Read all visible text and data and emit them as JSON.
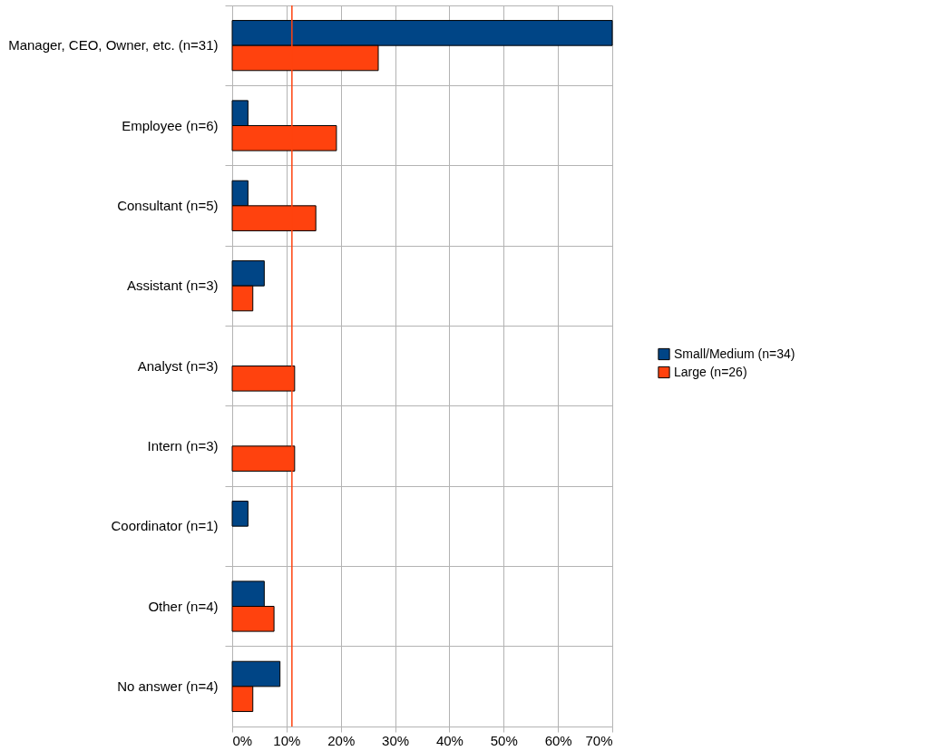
{
  "chart_data": {
    "type": "bar",
    "orientation": "horizontal",
    "categories": [
      "Manager, CEO, Owner, etc. (n=31)",
      "Employee (n=6)",
      "Consultant (n=5)",
      "Assistant (n=3)",
      "Analyst (n=3)",
      "Intern (n=3)",
      "Coordinator (n=1)",
      "Other (n=4)",
      "No answer (n=4)"
    ],
    "series": [
      {
        "name": "Small/Medium (n=34)",
        "color": "#004586",
        "values": [
          70,
          2.9,
          2.9,
          5.9,
          0,
          0,
          2.9,
          5.9,
          8.8
        ]
      },
      {
        "name": "Large (n=26)",
        "color": "#ff420e",
        "values": [
          26.9,
          19.2,
          15.4,
          3.8,
          11.5,
          11.5,
          0,
          7.7,
          3.8
        ]
      }
    ],
    "xlim": [
      0,
      70
    ],
    "xticks": [
      {
        "value": 0,
        "label": "0%"
      },
      {
        "value": 10,
        "label": "10%"
      },
      {
        "value": 20,
        "label": "20%"
      },
      {
        "value": 30,
        "label": "30%"
      },
      {
        "value": 40,
        "label": "40%"
      },
      {
        "value": 50,
        "label": "50%"
      },
      {
        "value": 60,
        "label": "60%"
      },
      {
        "value": 70,
        "label": "70%"
      }
    ],
    "ref_lines": [
      {
        "axis": "x",
        "value": 11,
        "color": "#ff420e"
      }
    ],
    "grid": "x",
    "legend": "right"
  }
}
